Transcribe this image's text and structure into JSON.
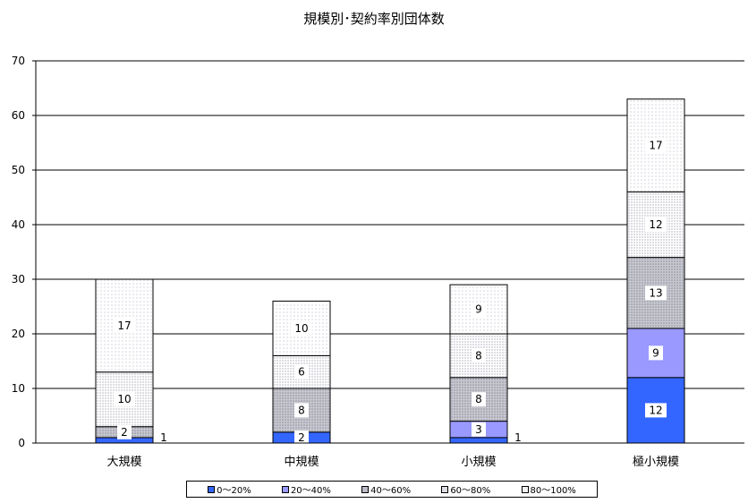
{
  "chart_data": {
    "type": "bar",
    "stacked": true,
    "title": "規模別･契約率別団体数",
    "categories": [
      "大規模",
      "中規模",
      "小規模",
      "極小規模"
    ],
    "series": [
      {
        "name": "0～20%",
        "values": [
          1,
          2,
          1,
          12
        ],
        "color": "#3366ff"
      },
      {
        "name": "20～40%",
        "values": [
          0,
          0,
          3,
          9
        ],
        "color": "#9999ff"
      },
      {
        "name": "40～60%",
        "values": [
          2,
          8,
          8,
          13
        ],
        "color": "#cccccc"
      },
      {
        "name": "60～80%",
        "values": [
          10,
          6,
          8,
          12
        ],
        "color": "#ececec"
      },
      {
        "name": "80～100%",
        "values": [
          17,
          10,
          9,
          17
        ],
        "color": "#f6f6f6"
      }
    ],
    "ylim": [
      0,
      70
    ],
    "yticks": [
      0,
      10,
      20,
      30,
      40,
      50,
      60,
      70
    ],
    "grid": true,
    "legend_position": "bottom"
  }
}
